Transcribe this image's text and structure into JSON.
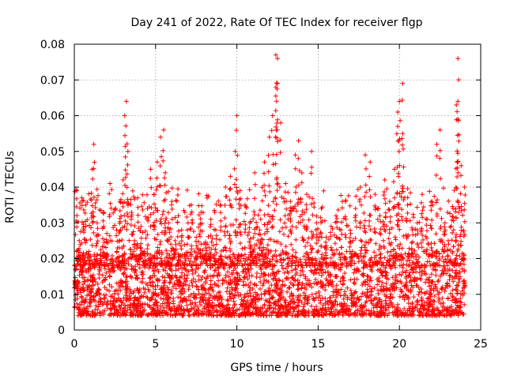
{
  "chart_data": {
    "type": "scatter",
    "title": "Day 241 of 2022, Rate Of TEC Index for receiver flgp",
    "xlabel": "GPS time / hours",
    "ylabel": "ROTI / TECUs",
    "xlim": [
      0,
      25
    ],
    "ylim": [
      0,
      0.08
    ],
    "xticks": [
      0,
      5,
      10,
      15,
      20,
      25
    ],
    "xtick_labels": [
      "0",
      "5",
      "10",
      "15",
      "20",
      "25"
    ],
    "yticks": [
      0,
      0.01,
      0.02,
      0.03,
      0.04,
      0.05,
      0.06,
      0.07,
      0.08
    ],
    "ytick_labels": [
      "0",
      "0.01",
      "0.02",
      "0.03",
      "0.04",
      "0.05",
      "0.06",
      "0.07",
      "0.08"
    ],
    "grid": true,
    "marker": "+",
    "series": [
      {
        "name": "ROTI",
        "color": "#ff0000",
        "x": [
          0.05,
          0.15,
          0.3,
          0.5,
          0.7,
          0.9,
          1.1,
          1.2,
          1.4,
          1.6,
          1.8,
          2.0,
          2.2,
          2.4,
          2.6,
          2.8,
          3.0,
          3.1,
          3.2,
          3.3,
          3.5,
          3.7,
          3.9,
          4.1,
          4.3,
          4.5,
          4.7,
          4.9,
          5.1,
          5.3,
          5.5,
          5.6,
          5.8,
          6.0,
          6.2,
          6.4,
          6.6,
          6.8,
          7.0,
          7.2,
          7.5,
          7.8,
          8.1,
          8.4,
          8.7,
          9.0,
          9.3,
          9.6,
          9.9,
          10.0,
          10.2,
          10.5,
          10.8,
          11.1,
          11.4,
          11.7,
          12.0,
          12.2,
          12.4,
          12.5,
          12.7,
          13.0,
          13.3,
          13.6,
          13.8,
          14.0,
          14.3,
          14.6,
          14.9,
          15.2,
          15.5,
          15.8,
          16.1,
          16.4,
          16.7,
          17.0,
          17.3,
          17.6,
          17.9,
          18.2,
          18.5,
          18.8,
          19.1,
          19.4,
          19.7,
          19.9,
          20.0,
          20.2,
          20.5,
          20.8,
          21.1,
          21.4,
          21.7,
          22.0,
          22.3,
          22.5,
          22.8,
          23.0,
          23.3,
          23.5,
          23.6,
          23.8,
          24.0,
          0.2,
          1.0,
          3.2,
          5.5,
          9.9,
          12.4,
          12.4,
          12.5,
          16.1,
          19.9,
          20.2,
          23.6,
          23.6,
          24.0
        ],
        "y": [
          0.012,
          0.039,
          0.025,
          0.018,
          0.035,
          0.022,
          0.045,
          0.052,
          0.03,
          0.02,
          0.033,
          0.027,
          0.041,
          0.019,
          0.028,
          0.036,
          0.042,
          0.06,
          0.064,
          0.05,
          0.031,
          0.025,
          0.037,
          0.029,
          0.022,
          0.034,
          0.045,
          0.038,
          0.047,
          0.054,
          0.056,
          0.044,
          0.03,
          0.036,
          0.025,
          0.032,
          0.028,
          0.021,
          0.03,
          0.035,
          0.026,
          0.033,
          0.024,
          0.031,
          0.028,
          0.035,
          0.04,
          0.043,
          0.05,
          0.06,
          0.039,
          0.035,
          0.03,
          0.044,
          0.028,
          0.047,
          0.054,
          0.06,
          0.068,
          0.076,
          0.058,
          0.041,
          0.036,
          0.049,
          0.053,
          0.044,
          0.038,
          0.05,
          0.03,
          0.034,
          0.026,
          0.029,
          0.032,
          0.028,
          0.031,
          0.027,
          0.034,
          0.04,
          0.049,
          0.047,
          0.038,
          0.032,
          0.042,
          0.036,
          0.045,
          0.061,
          0.064,
          0.055,
          0.035,
          0.028,
          0.03,
          0.038,
          0.031,
          0.036,
          0.052,
          0.056,
          0.03,
          0.025,
          0.034,
          0.063,
          0.076,
          0.046,
          0.04,
          0.01,
          0.008,
          0.009,
          0.01,
          0.011,
          0.012,
          0.077,
          0.069,
          0.015,
          0.057,
          0.069,
          0.059,
          0.064,
          0.012
        ]
      }
    ],
    "dense_band": {
      "description_values": "bulk of observations lies between 0.005 and 0.02 TECU across the whole day",
      "y_range": [
        0.004,
        0.02
      ],
      "x_range": [
        0,
        24
      ]
    }
  }
}
